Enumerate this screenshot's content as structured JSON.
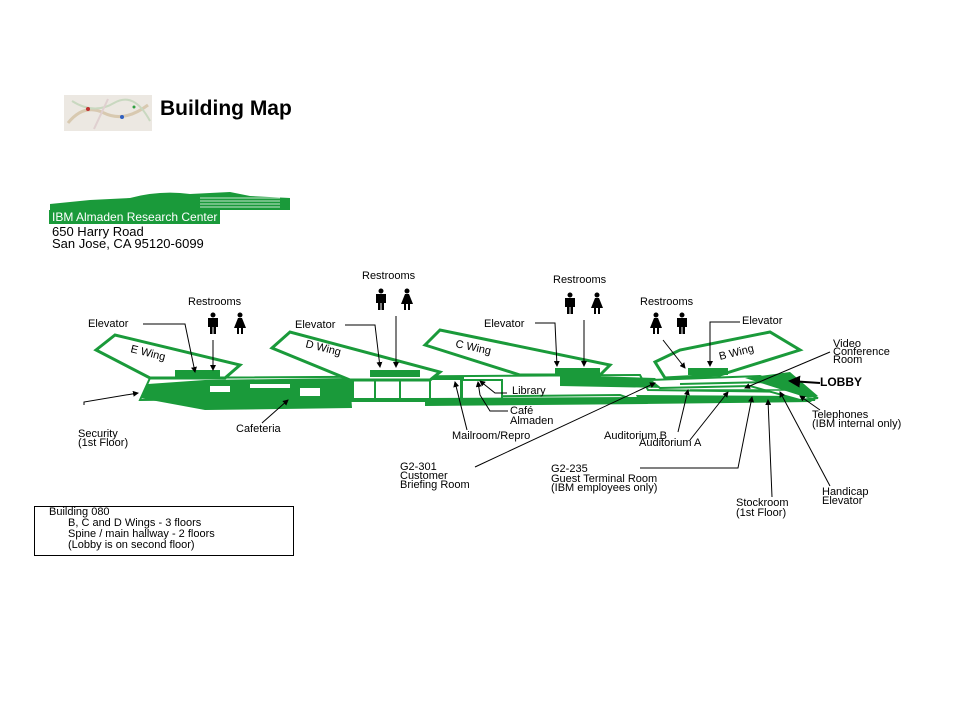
{
  "header": {
    "title": "Building Map"
  },
  "org": {
    "name": "IBM Almaden Research Center",
    "address_line1": "650 Harry Road",
    "address_line2": "San Jose, CA  95120-6099"
  },
  "wings": {
    "e": "E Wing",
    "d": "D Wing",
    "c": "C Wing",
    "b": "B Wing"
  },
  "labels": {
    "restrooms_1": "Restrooms",
    "restrooms_2": "Restrooms",
    "restrooms_3": "Restrooms",
    "restrooms_4": "Restrooms",
    "elevator_1": "Elevator",
    "elevator_2": "Elevator",
    "elevator_3": "Elevator",
    "elevator_4": "Elevator",
    "video_conf_1": "Video",
    "video_conf_2": "Conference",
    "video_conf_3": "Room",
    "lobby": "LOBBY",
    "library": "Library",
    "cafe_1": "Café",
    "cafe_2": "Almaden",
    "security_1": "Security",
    "security_2": "(1st Floor)",
    "cafeteria": "Cafeteria",
    "mailroom": "Mailroom/Repro",
    "auditorium_b": "Auditorium B",
    "auditorium_a": "Auditorium A",
    "telephones_1": "Telephones",
    "telephones_2": "(IBM internal only)",
    "g2_301_1": "G2-301",
    "g2_301_2": "Customer",
    "g2_301_3": "Briefing Room",
    "g2_235_1": "G2-235",
    "g2_235_2": "Guest Terminal Room",
    "g2_235_3": "(IBM employees only)",
    "handicap_1": "Handicap",
    "handicap_2": "Elevator",
    "stockroom_1": "Stockroom",
    "stockroom_2": "(1st Floor)"
  },
  "info": {
    "line1": "Building 080",
    "line2": "B, C and D Wings - 3 floors",
    "line3": "Spine / main hallway - 2 floors",
    "line4": "(Lobby is on second floor)"
  },
  "colors": {
    "building_green": "#1a9a3a",
    "text": "#000000",
    "background": "#ffffff"
  }
}
